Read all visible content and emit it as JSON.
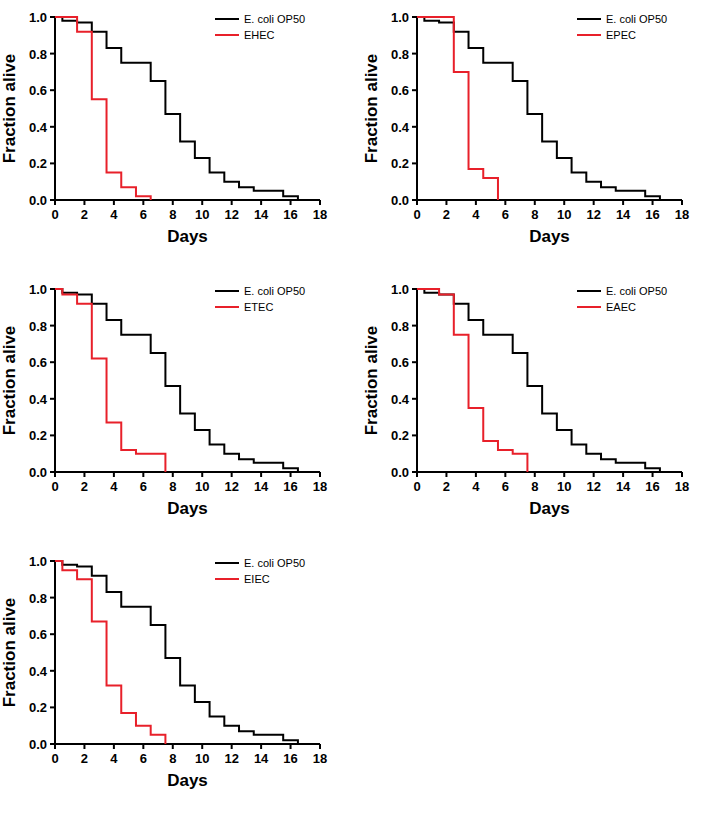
{
  "chart_data": [
    {
      "type": "step",
      "x_label": "Days",
      "y_label": "Fraction alive",
      "xlim": [
        0,
        18
      ],
      "ylim": [
        0,
        1
      ],
      "xticks": [
        0,
        2,
        4,
        6,
        8,
        10,
        12,
        14,
        16,
        18
      ],
      "yticks": [
        {
          "value": 0,
          "label": "0.0"
        },
        0.2,
        0.4,
        0.6,
        0.8,
        {
          "value": 1,
          "label": "1.0"
        }
      ],
      "legend": "upper right",
      "series": [
        {
          "name": "E. coli OP50",
          "color": "#000000",
          "x": [
            0,
            0.5,
            1.5,
            2.5,
            3.5,
            4.5,
            6.5,
            7.5,
            8.5,
            9.5,
            10.5,
            11.5,
            12.5,
            13.5,
            15.5,
            16.5,
            17
          ],
          "values": [
            1,
            0.98,
            0.97,
            0.92,
            0.83,
            0.75,
            0.65,
            0.47,
            0.32,
            0.23,
            0.15,
            0.1,
            0.07,
            0.05,
            0.02,
            0,
            0
          ]
        },
        {
          "name": "EHEC",
          "color": "#e8202a",
          "x": [
            0,
            1.5,
            2.5,
            3.5,
            4.5,
            5.5,
            6.5
          ],
          "values": [
            1,
            0.92,
            0.55,
            0.15,
            0.07,
            0.02,
            0
          ]
        }
      ]
    },
    {
      "type": "step",
      "x_label": "Days",
      "y_label": "Fraction alive",
      "xlim": [
        0,
        18
      ],
      "ylim": [
        0,
        1
      ],
      "xticks": [
        0,
        2,
        4,
        6,
        8,
        10,
        12,
        14,
        16,
        18
      ],
      "yticks": [
        {
          "value": 0,
          "label": "0.0"
        },
        0.2,
        0.4,
        0.6,
        0.8,
        {
          "value": 1,
          "label": "1.0"
        }
      ],
      "legend": "upper right",
      "series": [
        {
          "name": "E. coli OP50",
          "color": "#000000",
          "x": [
            0,
            0.5,
            1.5,
            2.5,
            3.5,
            4.5,
            6.5,
            7.5,
            8.5,
            9.5,
            10.5,
            11.5,
            12.5,
            13.5,
            15.5,
            16.5,
            17
          ],
          "values": [
            1,
            0.98,
            0.97,
            0.92,
            0.83,
            0.75,
            0.65,
            0.47,
            0.32,
            0.23,
            0.15,
            0.1,
            0.07,
            0.05,
            0.02,
            0,
            0
          ]
        },
        {
          "name": "EPEC",
          "color": "#e8202a",
          "x": [
            0,
            2.5,
            3.5,
            4.5,
            5.5
          ],
          "values": [
            1,
            0.7,
            0.17,
            0.12,
            0
          ]
        }
      ]
    },
    {
      "type": "step",
      "x_label": "Days",
      "y_label": "Fraction alive",
      "xlim": [
        0,
        18
      ],
      "ylim": [
        0,
        1
      ],
      "xticks": [
        0,
        2,
        4,
        6,
        8,
        10,
        12,
        14,
        16,
        18
      ],
      "yticks": [
        {
          "value": 0,
          "label": "0.0"
        },
        0.2,
        0.4,
        0.6,
        0.8,
        {
          "value": 1,
          "label": "1.0"
        }
      ],
      "legend": "upper right",
      "series": [
        {
          "name": "E. coli OP50",
          "color": "#000000",
          "x": [
            0,
            0.5,
            1.5,
            2.5,
            3.5,
            4.5,
            6.5,
            7.5,
            8.5,
            9.5,
            10.5,
            11.5,
            12.5,
            13.5,
            15.5,
            16.5,
            17
          ],
          "values": [
            1,
            0.98,
            0.97,
            0.92,
            0.83,
            0.75,
            0.65,
            0.47,
            0.32,
            0.23,
            0.15,
            0.1,
            0.07,
            0.05,
            0.02,
            0,
            0
          ]
        },
        {
          "name": "ETEC",
          "color": "#e8202a",
          "x": [
            0,
            0.5,
            1.5,
            2.5,
            3.5,
            4.5,
            5.5,
            7.5
          ],
          "values": [
            1,
            0.97,
            0.92,
            0.62,
            0.27,
            0.12,
            0.1,
            0
          ]
        }
      ]
    },
    {
      "type": "step",
      "x_label": "Days",
      "y_label": "Fraction alive",
      "xlim": [
        0,
        18
      ],
      "ylim": [
        0,
        1
      ],
      "xticks": [
        0,
        2,
        4,
        6,
        8,
        10,
        12,
        14,
        16,
        18
      ],
      "yticks": [
        {
          "value": 0,
          "label": "0.0"
        },
        0.2,
        0.4,
        0.6,
        0.8,
        {
          "value": 1,
          "label": "1.0"
        }
      ],
      "legend": "upper right",
      "series": [
        {
          "name": "E. coli OP50",
          "color": "#000000",
          "x": [
            0,
            0.5,
            1.5,
            2.5,
            3.5,
            4.5,
            6.5,
            7.5,
            8.5,
            9.5,
            10.5,
            11.5,
            12.5,
            13.5,
            15.5,
            16.5,
            17
          ],
          "values": [
            1,
            0.98,
            0.97,
            0.92,
            0.83,
            0.75,
            0.65,
            0.47,
            0.32,
            0.23,
            0.15,
            0.1,
            0.07,
            0.05,
            0.02,
            0,
            0
          ]
        },
        {
          "name": "EAEC",
          "color": "#e8202a",
          "x": [
            0,
            1.5,
            2.5,
            3.5,
            4.5,
            5.5,
            6.5,
            7.5
          ],
          "values": [
            1,
            0.97,
            0.75,
            0.35,
            0.17,
            0.12,
            0.1,
            0
          ]
        }
      ]
    },
    {
      "type": "step",
      "x_label": "Days",
      "y_label": "Fraction alive",
      "xlim": [
        0,
        18
      ],
      "ylim": [
        0,
        1
      ],
      "xticks": [
        0,
        2,
        4,
        6,
        8,
        10,
        12,
        14,
        16,
        18
      ],
      "yticks": [
        {
          "value": 0,
          "label": "0.0"
        },
        0.2,
        0.4,
        0.6,
        0.8,
        {
          "value": 1,
          "label": "1.0"
        }
      ],
      "legend": "upper right",
      "series": [
        {
          "name": "E. coli OP50",
          "color": "#000000",
          "x": [
            0,
            0.5,
            1.5,
            2.5,
            3.5,
            4.5,
            6.5,
            7.5,
            8.5,
            9.5,
            10.5,
            11.5,
            12.5,
            13.5,
            15.5,
            16.5,
            17
          ],
          "values": [
            1,
            0.98,
            0.97,
            0.92,
            0.83,
            0.75,
            0.65,
            0.47,
            0.32,
            0.23,
            0.15,
            0.1,
            0.07,
            0.05,
            0.02,
            0,
            0
          ]
        },
        {
          "name": "EIEC",
          "color": "#e8202a",
          "x": [
            0,
            0.5,
            1.5,
            2.5,
            3.5,
            4.5,
            5.5,
            6.5,
            7.5
          ],
          "values": [
            1,
            0.95,
            0.9,
            0.67,
            0.32,
            0.17,
            0.1,
            0.05,
            0
          ]
        }
      ]
    }
  ]
}
